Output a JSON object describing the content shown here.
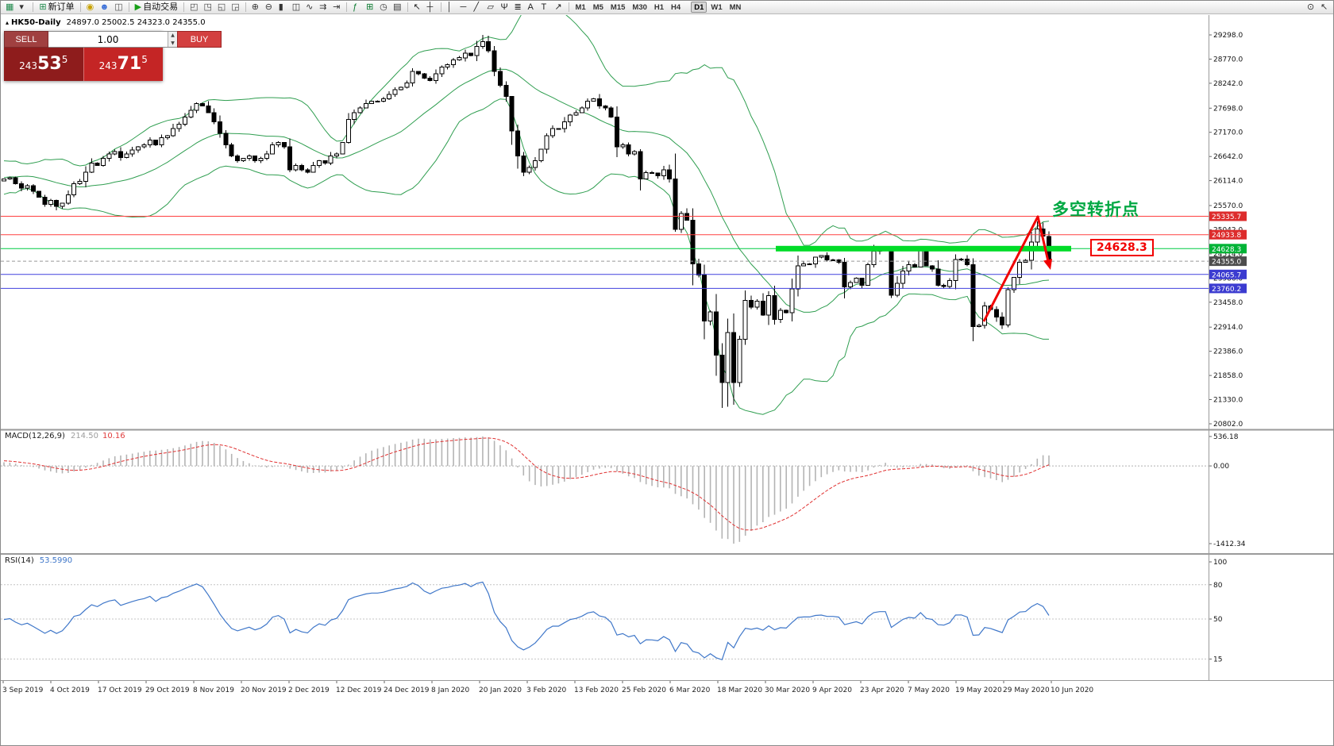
{
  "toolbar": {
    "new_order_label": "新订单",
    "auto_trading_label": "自动交易",
    "timeframes": [
      "M1",
      "M5",
      "M15",
      "M30",
      "H1",
      "H4",
      "D1",
      "W1",
      "MN"
    ],
    "active_timeframe": "D1",
    "tools": [
      {
        "t": "icon",
        "name": "new-chart-icon",
        "g": "▦",
        "c": "#1f8a4c"
      },
      {
        "t": "icon",
        "name": "chevron-down-icon",
        "g": "▾",
        "c": "#333333"
      },
      {
        "t": "sep"
      },
      {
        "t": "btn",
        "name": "new-order-button",
        "g": "⊞",
        "c": "#1f8a4c",
        "label_key": "new_order_label"
      },
      {
        "t": "sep"
      },
      {
        "t": "icon",
        "name": "account-history-icon",
        "g": "◉",
        "c": "#c8a200"
      },
      {
        "t": "icon",
        "name": "profile-icon",
        "g": "☻",
        "c": "#3a6fd8"
      },
      {
        "t": "icon",
        "name": "market-watch-icon",
        "g": "◫",
        "c": "#555555"
      },
      {
        "t": "sep"
      },
      {
        "t": "btn",
        "name": "auto-trading-button",
        "g": "▶",
        "c": "#18a018",
        "label_key": "auto_trading_label"
      },
      {
        "t": "sep"
      },
      {
        "t": "icon",
        "name": "tile-windows-icon",
        "g": "◰",
        "c": "#444444"
      },
      {
        "t": "icon",
        "name": "cascade-windows-icon",
        "g": "◳",
        "c": "#444444"
      },
      {
        "t": "icon",
        "name": "tile-horizontal-icon",
        "g": "◱",
        "c": "#444444"
      },
      {
        "t": "icon",
        "name": "tile-vertical-icon",
        "g": "◲",
        "c": "#444444"
      },
      {
        "t": "sep"
      },
      {
        "t": "icon",
        "name": "zoom-in-icon",
        "g": "⊕",
        "c": "#333333"
      },
      {
        "t": "icon",
        "name": "zoom-out-icon",
        "g": "⊖",
        "c": "#333333"
      },
      {
        "t": "icon",
        "name": "bar-chart-mode-icon",
        "g": "▮",
        "c": "#333333"
      },
      {
        "t": "icon",
        "name": "candlestick-mode-icon",
        "g": "◫",
        "c": "#333333"
      },
      {
        "t": "icon",
        "name": "line-chart-mode-icon",
        "g": "∿",
        "c": "#333333"
      },
      {
        "t": "icon",
        "name": "auto-scroll-icon",
        "g": "⇉",
        "c": "#333333"
      },
      {
        "t": "icon",
        "name": "chart-shift-icon",
        "g": "⇥",
        "c": "#333333"
      },
      {
        "t": "sep"
      },
      {
        "t": "icon",
        "name": "indicators-icon",
        "g": "ƒ",
        "c": "#0a7a2f"
      },
      {
        "t": "icon",
        "name": "add-indicator-icon",
        "g": "⊞",
        "c": "#0a7a2f"
      },
      {
        "t": "icon",
        "name": "periods-icon",
        "g": "◷",
        "c": "#333333"
      },
      {
        "t": "icon",
        "name": "templates-icon",
        "g": "▤",
        "c": "#333333"
      },
      {
        "t": "sep"
      },
      {
        "t": "icon",
        "name": "cursor-icon",
        "g": "↖",
        "c": "#222222"
      },
      {
        "t": "icon",
        "name": "crosshair-icon",
        "g": "┼",
        "c": "#222222"
      },
      {
        "t": "sep"
      },
      {
        "t": "icon",
        "name": "vertical-line-icon",
        "g": "│",
        "c": "#222222"
      },
      {
        "t": "icon",
        "name": "horizontal-line-icon",
        "g": "─",
        "c": "#222222"
      },
      {
        "t": "icon",
        "name": "trendline-icon",
        "g": "╱",
        "c": "#222222"
      },
      {
        "t": "icon",
        "name": "channel-icon",
        "g": "▱",
        "c": "#222222"
      },
      {
        "t": "icon",
        "name": "pitchfork-icon",
        "g": "Ψ",
        "c": "#222222"
      },
      {
        "t": "icon",
        "name": "fibonacci-icon",
        "g": "≣",
        "c": "#222222"
      },
      {
        "t": "icon",
        "name": "text-tool-icon",
        "g": "A",
        "c": "#222222"
      },
      {
        "t": "icon",
        "name": "label-tool-icon",
        "g": "T",
        "c": "#222222"
      },
      {
        "t": "icon",
        "name": "arrows-tool-icon",
        "g": "↗",
        "c": "#222222"
      },
      {
        "t": "sep"
      },
      {
        "t": "tfs"
      },
      {
        "t": "spring"
      },
      {
        "t": "icon",
        "name": "search-icon",
        "g": "⊙",
        "c": "#333333"
      },
      {
        "t": "icon",
        "name": "pointer-icon",
        "g": "↖",
        "c": "#333333"
      }
    ]
  },
  "trade_panel": {
    "sell_label": "SELL",
    "buy_label": "BUY",
    "volume": "1.00",
    "bid": "24353.5",
    "ask": "24371.5"
  },
  "chart": {
    "symbol_period": "HK50-Daily",
    "ohlc": "24897.0 25002.5 24323.0 24355.0",
    "annotation": "多空转折点",
    "annotation_color": "#00A843",
    "level_label": "24628.3",
    "bollinger_color": "#2f9e50",
    "candle_up_color": "#ffffff",
    "candle_down_color": "#000000",
    "y_axis_labels": [
      "29298.0",
      "28770.0",
      "28242.0",
      "27698.0",
      "27170.0",
      "26642.0",
      "26114.0",
      "25570.0",
      "25042.0",
      "24514.0",
      "23986.0",
      "23458.0",
      "22914.0",
      "22386.0",
      "21858.0",
      "21330.0",
      "20802.0"
    ],
    "price_tags": [
      {
        "value": "25335.7",
        "bg": "#dd2c2c"
      },
      {
        "value": "24933.8",
        "bg": "#dd2c2c"
      },
      {
        "value": "24628.3",
        "bg": "#00b336"
      },
      {
        "value": "24355.0",
        "bg": "#4d4d4d"
      },
      {
        "value": "24065.7",
        "bg": "#3b3bd0"
      },
      {
        "value": "23760.2",
        "bg": "#3b3bd0"
      }
    ],
    "levels": [
      {
        "price": 25335.7,
        "color": "#ff4040",
        "width": 1,
        "style": "solid"
      },
      {
        "price": 24933.8,
        "color": "#ff4040",
        "width": 1,
        "style": "solid"
      },
      {
        "price": 24628.3,
        "color": "#00cc44",
        "width": 1,
        "style": "solid"
      },
      {
        "price": 24355.0,
        "color": "#999999",
        "width": 1,
        "style": "dash"
      },
      {
        "price": 24065.7,
        "color": "#4040dd",
        "width": 1,
        "style": "solid"
      },
      {
        "price": 23760.2,
        "color": "#4040dd",
        "width": 1,
        "style": "solid"
      }
    ],
    "highlight_segment": {
      "price": 24628.3,
      "color": "#00DC28",
      "thickness": 7
    },
    "x_axis_labels": [
      "3 Sep 2019",
      "4 Oct 2019",
      "17 Oct 2019",
      "29 Oct 2019",
      "8 Nov 2019",
      "20 Nov 2019",
      "2 Dec 2019",
      "12 Dec 2019",
      "24 Dec 2019",
      "8 Jan 2020",
      "20 Jan 2020",
      "3 Feb 2020",
      "13 Feb 2020",
      "25 Feb 2020",
      "6 Mar 2020",
      "18 Mar 2020",
      "30 Mar 2020",
      "9 Apr 2020",
      "23 Apr 2020",
      "7 May 2020",
      "19 May 2020",
      "29 May 2020",
      "10 Jun 2020"
    ]
  },
  "chart_data": {
    "type": "candlestick",
    "symbol": "HK50",
    "timeframe": "Daily",
    "price_range": [
      20802.0,
      29298.0
    ],
    "overlays": [
      "Bollinger Bands (20,2)"
    ],
    "last_bar": {
      "open": 24897.0,
      "high": 25002.5,
      "low": 24323.0,
      "close": 24355.0
    },
    "wick_overrides": [
      {
        "i": 82,
        "high": 29298
      },
      {
        "i": 123,
        "low": 21150
      },
      {
        "i": 178,
        "high": 25200
      }
    ],
    "closes_warmup": [
      26000,
      25600,
      25200,
      25400,
      25000,
      25200,
      25600,
      25400,
      25800,
      26200,
      26000,
      26400,
      26200,
      26500,
      26300,
      26100,
      25900,
      26100,
      25700,
      25900,
      26100,
      26300,
      26200,
      26400,
      26300,
      26200,
      26400,
      26500,
      26300,
      26200,
      26100,
      26200,
      26300,
      26250,
      26150
    ],
    "closes": [
      26150,
      26180,
      26050,
      25950,
      26000,
      25880,
      25750,
      25600,
      25680,
      25550,
      25620,
      25800,
      26050,
      26100,
      26300,
      26500,
      26450,
      26600,
      26700,
      26750,
      26620,
      26700,
      26780,
      26850,
      26900,
      27000,
      26900,
      27050,
      27100,
      27250,
      27350,
      27500,
      27650,
      27800,
      27750,
      27600,
      27400,
      27150,
      26900,
      26650,
      26550,
      26600,
      26650,
      26550,
      26600,
      26700,
      26900,
      26950,
      26850,
      26350,
      26450,
      26350,
      26300,
      26450,
      26550,
      26500,
      26650,
      26700,
      26950,
      27450,
      27600,
      27700,
      27800,
      27850,
      27850,
      27900,
      28000,
      28100,
      28150,
      28250,
      28500,
      28450,
      28350,
      28300,
      28450,
      28600,
      28650,
      28750,
      28800,
      28900,
      28850,
      29050,
      29150,
      28950,
      28500,
      28200,
      27950,
      27200,
      26650,
      26300,
      26400,
      26550,
      26800,
      27100,
      27250,
      27250,
      27400,
      27550,
      27600,
      27700,
      27850,
      27900,
      27750,
      27700,
      27500,
      26850,
      26900,
      26700,
      26750,
      26150,
      26290,
      26280,
      26220,
      26350,
      26150,
      25050,
      25400,
      25250,
      24300,
      24050,
      23050,
      23250,
      22300,
      21700,
      22800,
      21700,
      22650,
      23500,
      23350,
      23480,
      23180,
      23600,
      23080,
      23280,
      23230,
      23750,
      24250,
      24300,
      24300,
      24440,
      24480,
      24380,
      24380,
      24330,
      23790,
      23890,
      23980,
      23830,
      24280,
      24570,
      24640,
      24640,
      23610,
      23870,
      24140,
      24280,
      24230,
      24600,
      24250,
      24180,
      23830,
      23800,
      23930,
      24390,
      24400,
      24280,
      22930,
      22950,
      23380,
      23300,
      23130,
      22960,
      23730,
      24000,
      24330,
      24370,
      24770,
      25060,
      24900,
      24355
    ]
  },
  "macd_panel": {
    "label": "MACD(12,26,9)",
    "main_value": "214.50",
    "signal_value": "10.16",
    "axis_labels": [
      "536.18",
      "0.00",
      "-1412.34"
    ],
    "axis_values": [
      536.18,
      0,
      -1412.34
    ],
    "histogram_color": "#b4b4b4",
    "signal_color": "#e03030"
  },
  "rsi_panel": {
    "label": "RSI(14)",
    "value": "53.5990",
    "axis_labels": [
      "100",
      "80",
      "50",
      "15"
    ],
    "axis_values": [
      100,
      80,
      50,
      15
    ],
    "levels": [
      80,
      50,
      15
    ],
    "line_color": "#3f77c9"
  }
}
